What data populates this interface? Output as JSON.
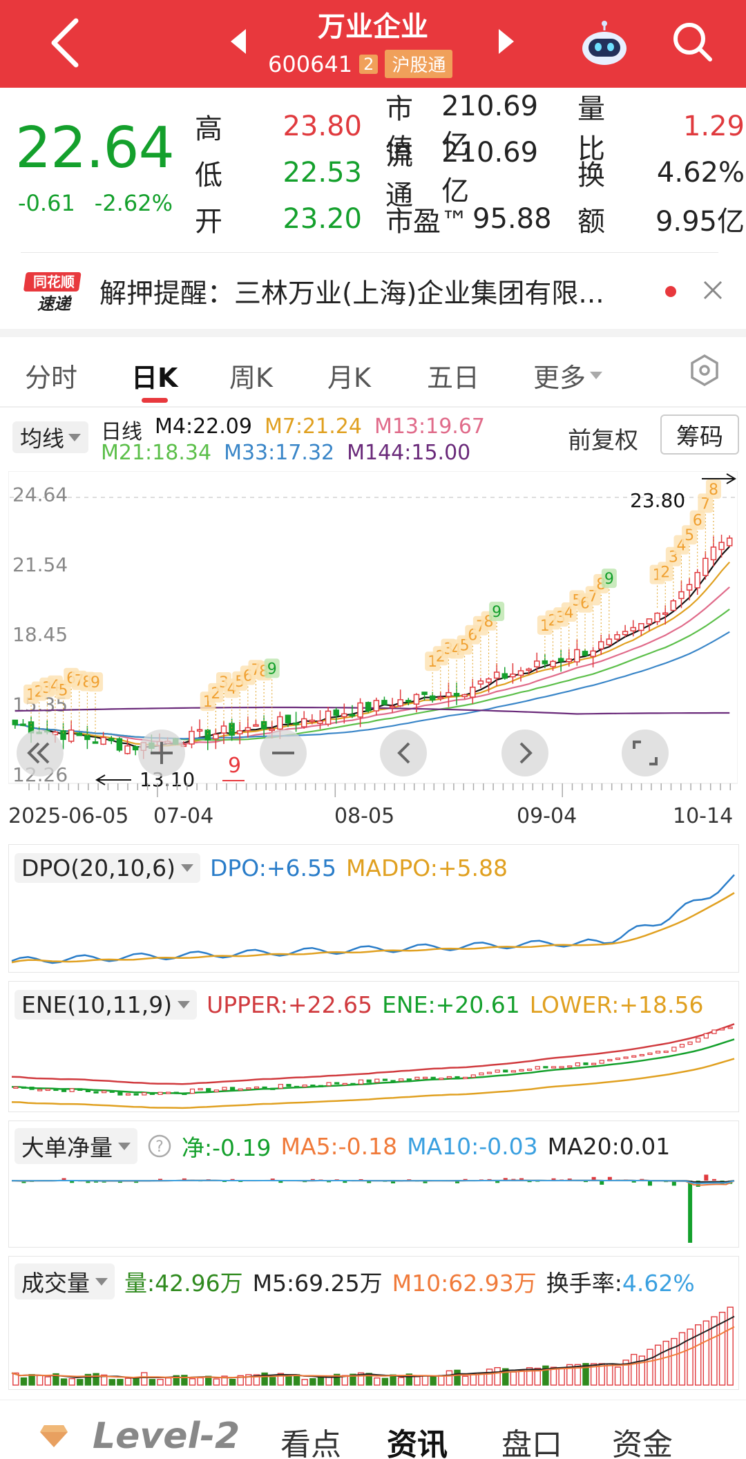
{
  "header": {
    "title": "万业企业",
    "code": "600641",
    "code_badge": "2",
    "market_badge": "沪股通"
  },
  "quote": {
    "price": "22.64",
    "change": "-0.61",
    "change_pct": "-2.62%",
    "rows": [
      {
        "l1": "高",
        "v1": "23.80",
        "l2": "市值",
        "v2": "210.69亿",
        "l3": "量比",
        "v3": "1.29"
      },
      {
        "l1": "低",
        "v1": "22.53",
        "l2": "流通",
        "v2": "210.69亿",
        "l3": "换",
        "v3": "4.62%"
      },
      {
        "l1": "开",
        "v1": "23.20",
        "l2": "市盈™",
        "v2": "95.88",
        "l3": "额",
        "v3": "9.95亿"
      }
    ]
  },
  "news": {
    "logo_top": "同花顺",
    "logo_bottom": "速递",
    "text": "解押提醒：三林万业(上海)企业集团有限..."
  },
  "tabs": [
    "分时",
    "日K",
    "周K",
    "月K",
    "五日",
    "更多"
  ],
  "active_tab": "日K",
  "kline": {
    "ma_button": "均线",
    "period": "日线",
    "ma": [
      {
        "label": "M4:22.09",
        "color": "#111111"
      },
      {
        "label": "M7:21.24",
        "color": "#e0a020"
      },
      {
        "label": "M13:19.67",
        "color": "#e06b8a"
      },
      {
        "label": "M21:18.34",
        "color": "#5cbf4a"
      },
      {
        "label": "M33:17.32",
        "color": "#3a86c8"
      },
      {
        "label": "M144:15.00",
        "color": "#6a2a7a"
      }
    ],
    "adjust": "前复权",
    "chip_button": "筹码",
    "yticks": [
      "24.64",
      "21.54",
      "18.45",
      "15.35",
      "12.26"
    ],
    "high_label": "23.80",
    "low_label": "13.10",
    "dates": [
      "2025-06-05",
      "07-04",
      "08-05",
      "09-04",
      "10-14"
    ],
    "td_low_marker": "9"
  },
  "dpo": {
    "name": "DPO(20,10,6)",
    "dpo": "DPO:+6.55",
    "madpo": "MADPO:+5.88"
  },
  "ene": {
    "name": "ENE(10,11,9)",
    "upper": "UPPER:+22.65",
    "ene": "ENE:+20.61",
    "lower": "LOWER:+18.56"
  },
  "bigorder": {
    "name": "大单净量",
    "net": "净:-0.19",
    "ma5": "MA5:-0.18",
    "ma10": "MA10:-0.03",
    "ma20": "MA20:0.01"
  },
  "volume": {
    "name": "成交量",
    "vol": "量:42.96万",
    "m5": "M5:69.25万",
    "m10": "M10:62.93万",
    "turnover_label": "换手率:",
    "turnover": "4.62%"
  },
  "bottom_nav": {
    "level2": "Level-2",
    "items": [
      "看点",
      "资讯",
      "盘口",
      "资金"
    ],
    "active": "资讯"
  },
  "colors": {
    "brand": "#e8383d",
    "up": "#e03a3e",
    "down": "#14a02c"
  }
}
